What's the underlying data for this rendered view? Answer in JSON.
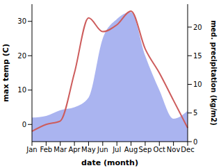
{
  "chart_data": {
    "type": "line",
    "x_label": "date (month)",
    "y_label": "max temp (C)",
    "y2_label": "med. precipitation (kg/m2)",
    "categories": [
      "Jan",
      "Feb",
      "Mar",
      "Apr",
      "May",
      "Jun",
      "Jul",
      "Aug",
      "Sep",
      "Oct",
      "Nov",
      "Dec"
    ],
    "series": [
      {
        "name": "med. precipitation",
        "type": "area",
        "axis": "y2",
        "color": "#aab4f0",
        "values": [
          4.2,
          4.5,
          5.5,
          6,
          7.7,
          18,
          21.4,
          22.6,
          15,
          9,
          4,
          5.4
        ]
      },
      {
        "name": "max temp",
        "type": "line",
        "color": "#cd5c5c",
        "values": [
          -2,
          0,
          1,
          15,
          31,
          27,
          29,
          33,
          22,
          15,
          7,
          -1
        ]
      }
    ],
    "ylim": [
      -5,
      35
    ],
    "yticks": [
      0,
      10,
      20,
      30
    ],
    "y2lim": [
      0,
      24
    ],
    "y2ticks": [
      0,
      5,
      10,
      15,
      20
    ],
    "grid": false
  }
}
